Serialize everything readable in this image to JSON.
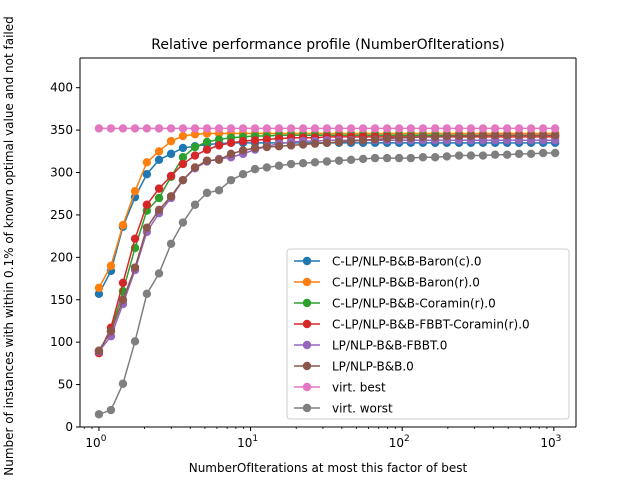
{
  "chart_data": {
    "type": "line",
    "title": "Relative performance profile (NumberOfIterations)",
    "xlabel": "NumberOfIterations at most this factor of best",
    "ylabel": "Number of instances with within 0.1% of known optimal value and not failed",
    "xscale": "log",
    "xlim": [
      0.75,
      1400
    ],
    "ylim": [
      0,
      435
    ],
    "x_ticks": [
      1,
      10,
      100,
      1000
    ],
    "x_tick_labels": [
      "10^0",
      "10^1",
      "10^2",
      "10^3"
    ],
    "y_ticks": [
      0,
      50,
      100,
      150,
      200,
      250,
      300,
      350,
      400
    ],
    "legend_position": "lower-right",
    "grid": false,
    "x": [
      1.0,
      1.2,
      1.44,
      1.73,
      2.07,
      2.49,
      2.99,
      3.58,
      4.3,
      5.16,
      6.19,
      7.43,
      8.92,
      10.7,
      12.8,
      15.4,
      18.5,
      22.2,
      26.6,
      31.9,
      38.3,
      46.0,
      55.2,
      66.2,
      79.5,
      95.4,
      114,
      137,
      165,
      197,
      237,
      284,
      341,
      410,
      492,
      590,
      708,
      850,
      1020
    ],
    "series": [
      {
        "name": "C-LP/NLP-B&B-Baron(c).0",
        "color": "#1f77b4",
        "values": [
          157,
          184,
          236,
          271,
          298,
          315,
          322,
          329,
          331,
          333,
          334,
          335,
          335,
          335,
          335,
          335,
          335,
          335,
          335,
          335,
          335,
          335,
          335,
          335,
          335,
          335,
          335,
          335,
          335,
          335,
          335,
          335,
          335,
          335,
          335,
          335,
          335,
          335,
          335
        ]
      },
      {
        "name": "C-LP/NLP-B&B-Baron(r).0",
        "color": "#ff7f0e",
        "values": [
          164,
          190,
          238,
          278,
          312,
          325,
          337,
          343,
          345,
          346,
          346,
          346,
          346,
          346,
          346,
          346,
          346,
          346,
          346,
          346,
          346,
          346,
          346,
          346,
          346,
          346,
          346,
          346,
          346,
          346,
          346,
          346,
          346,
          346,
          346,
          346,
          346,
          346,
          346
        ]
      },
      {
        "name": "C-LP/NLP-B&B-Coramin(r).0",
        "color": "#2ca02c",
        "values": [
          90,
          113,
          160,
          211,
          255,
          270,
          295,
          318,
          330,
          336,
          339,
          341,
          342,
          343,
          343,
          344,
          344,
          344,
          344,
          344,
          344,
          344,
          344,
          344,
          344,
          344,
          344,
          344,
          344,
          344,
          344,
          344,
          344,
          344,
          344,
          344,
          344,
          344,
          344
        ]
      },
      {
        "name": "C-LP/NLP-B&B-FBBT-Coramin(r).0",
        "color": "#d62728",
        "values": [
          87,
          117,
          170,
          222,
          262,
          281,
          296,
          310,
          320,
          327,
          332,
          335,
          337,
          338,
          339,
          340,
          341,
          341,
          341,
          342,
          342,
          342,
          342,
          342,
          342,
          342,
          342,
          342,
          342,
          342,
          342,
          342,
          342,
          342,
          342,
          342,
          342,
          342,
          342
        ]
      },
      {
        "name": "LP/NLP-B&B-FBBT.0",
        "color": "#9467bd",
        "values": [
          89,
          107,
          145,
          185,
          230,
          252,
          270,
          291,
          305,
          313,
          316,
          318,
          322,
          327,
          331,
          334,
          336,
          337,
          337,
          338,
          338,
          338,
          338,
          338,
          338,
          338,
          338,
          338,
          338,
          338,
          338,
          338,
          338,
          338,
          338,
          338,
          338,
          338,
          338
        ]
      },
      {
        "name": "LP/NLP-B&B.0",
        "color": "#8c564b",
        "values": [
          90,
          113,
          150,
          188,
          235,
          256,
          272,
          291,
          306,
          314,
          315,
          322,
          326,
          329,
          330,
          331,
          332,
          333,
          334,
          335,
          336,
          337,
          338,
          339,
          340,
          341,
          341,
          342,
          342,
          343,
          343,
          343,
          344,
          344,
          344,
          344,
          344,
          344,
          344
        ]
      },
      {
        "name": "virt. best",
        "color": "#e377c2",
        "values": [
          352,
          352,
          352,
          352,
          352,
          352,
          352,
          352,
          352,
          352,
          352,
          352,
          352,
          352,
          352,
          352,
          352,
          352,
          352,
          352,
          352,
          352,
          352,
          352,
          352,
          352,
          352,
          352,
          352,
          352,
          352,
          352,
          352,
          352,
          352,
          352,
          352,
          352,
          352
        ]
      },
      {
        "name": "virt. worst",
        "color": "#7f7f7f",
        "values": [
          15,
          20,
          51,
          101,
          157,
          181,
          216,
          241,
          262,
          276,
          279,
          291,
          298,
          304,
          306,
          308,
          310,
          311,
          312,
          313,
          314,
          315,
          316,
          317,
          317,
          317,
          317,
          318,
          318,
          319,
          320,
          320,
          320,
          321,
          321,
          322,
          322,
          323,
          323
        ]
      }
    ]
  }
}
